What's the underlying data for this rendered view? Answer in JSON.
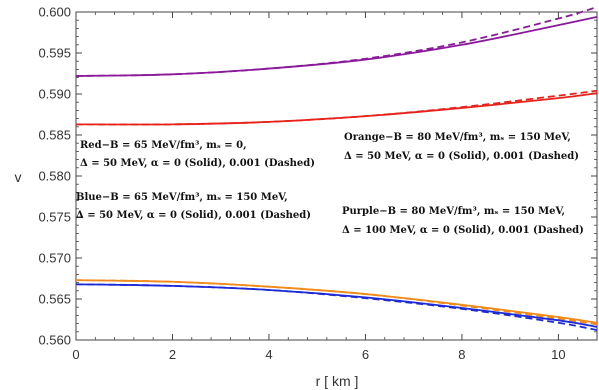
{
  "chart_data": {
    "type": "line",
    "title": "",
    "xlabel": "r  [ km ]",
    "ylabel": "v",
    "xlim": [
      0,
      10.8
    ],
    "ylim": [
      0.56,
      0.6
    ],
    "xticks": [
      0,
      2,
      4,
      6,
      8,
      10
    ],
    "yticks": [
      0.56,
      0.565,
      0.57,
      0.575,
      0.58,
      0.585,
      0.59,
      0.595,
      0.6
    ],
    "xtick_labels": [
      "0",
      "2",
      "4",
      "6",
      "8",
      "10"
    ],
    "ytick_labels": [
      "0.560",
      "0.565",
      "0.570",
      "0.575",
      "0.580",
      "0.585",
      "0.590",
      "0.595",
      "0.600"
    ],
    "grid": false,
    "series": [
      {
        "name": "Purple",
        "color": "#8b1a9b",
        "style": "solid",
        "x": [
          0,
          2,
          4,
          6,
          8,
          10,
          10.8
        ],
        "y": [
          0.5922,
          0.5924,
          0.5931,
          0.5942,
          0.596,
          0.5984,
          0.5994
        ]
      },
      {
        "name": "Purple",
        "color": "#8b1a9b",
        "style": "dashed",
        "x": [
          0,
          2,
          4,
          6,
          8,
          10,
          10.8
        ],
        "y": [
          0.5922,
          0.5924,
          0.5931,
          0.5943,
          0.5963,
          0.5992,
          0.6006
        ]
      },
      {
        "name": "Red",
        "color": "#e8221a",
        "style": "solid",
        "x": [
          0,
          2,
          4,
          6,
          8,
          10,
          10.8
        ],
        "y": [
          0.5863,
          0.5863,
          0.5866,
          0.5873,
          0.5883,
          0.5895,
          0.5901
        ]
      },
      {
        "name": "Red",
        "color": "#e8221a",
        "style": "dashed",
        "x": [
          0,
          2,
          4,
          6,
          8,
          10,
          10.8
        ],
        "y": [
          0.5863,
          0.5863,
          0.5866,
          0.5873,
          0.5884,
          0.5898,
          0.5904
        ]
      },
      {
        "name": "Orange",
        "color": "#f08a1a",
        "style": "solid",
        "x": [
          0,
          2,
          4,
          6,
          8,
          10,
          10.8
        ],
        "y": [
          0.5673,
          0.5671,
          0.5665,
          0.5656,
          0.5643,
          0.5628,
          0.5621
        ]
      },
      {
        "name": "Orange",
        "color": "#f08a1a",
        "style": "dashed",
        "x": [
          0,
          2,
          4,
          6,
          8,
          10,
          10.8
        ],
        "y": [
          0.5673,
          0.5671,
          0.5665,
          0.5656,
          0.5642,
          0.5626,
          0.5619
        ]
      },
      {
        "name": "Blue",
        "color": "#1c2bd6",
        "style": "solid",
        "x": [
          0,
          2,
          4,
          6,
          8,
          10,
          10.8
        ],
        "y": [
          0.5668,
          0.5666,
          0.5661,
          0.5652,
          0.5639,
          0.5624,
          0.5616
        ]
      },
      {
        "name": "Blue",
        "color": "#1c2bd6",
        "style": "dashed",
        "x": [
          0,
          2,
          4,
          6,
          8,
          10,
          10.8
        ],
        "y": [
          0.5668,
          0.5666,
          0.5661,
          0.5651,
          0.5638,
          0.5621,
          0.5612
        ]
      }
    ],
    "annotations": {
      "red_line1": "Red−B = 65 MeV/fm³, mₛ = 0,",
      "red_line2": "Δ = 50 MeV, α = 0 (Solid), 0.001 (Dashed)",
      "blue_line1": "Blue−B = 65 MeV/fm³, mₛ = 150 MeV,",
      "blue_line2": "Δ = 50 MeV, α = 0 (Solid), 0.001 (Dashed)",
      "orange_line1": "Orange−B = 80 MeV/fm³, mₛ = 150 MeV,",
      "orange_line2": "Δ = 50 MeV, α = 0 (Solid), 0.001 (Dashed)",
      "purple_line1": "Purple−B = 80 MeV/fm³, mₛ = 150 MeV,",
      "purple_line2": "Δ = 100 MeV, α = 0 (Solid), 0.001 (Dashed)"
    }
  }
}
